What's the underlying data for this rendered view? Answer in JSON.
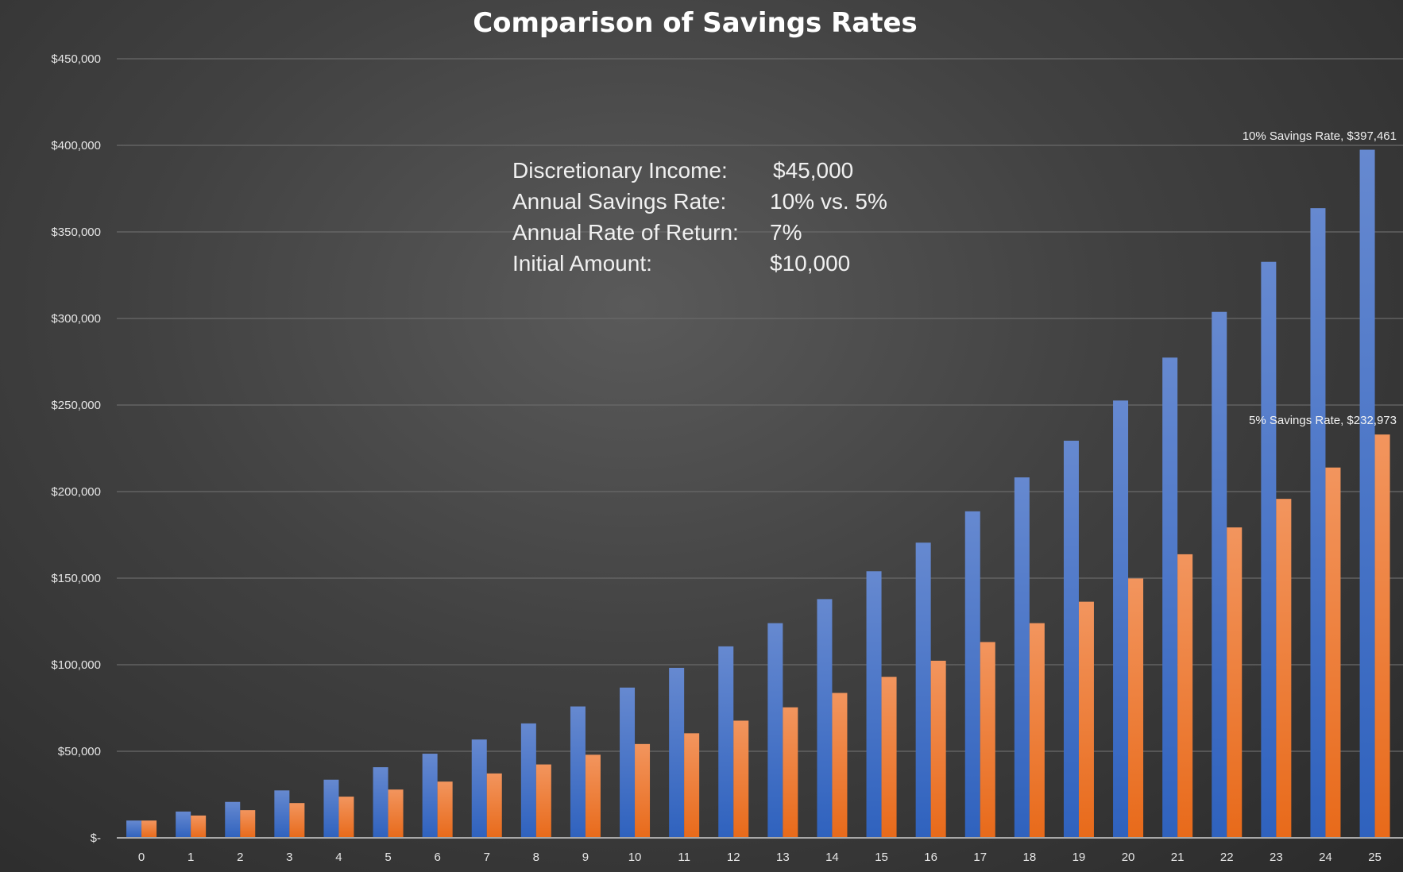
{
  "chart_data": {
    "type": "bar",
    "title": "Comparison of Savings Rates",
    "xlabel": "",
    "ylabel": "",
    "ylim": [
      0,
      450000
    ],
    "grid": true,
    "legend": "none",
    "y_ticks": [
      "$-",
      "$50,000",
      "$100,000",
      "$150,000",
      "$200,000",
      "$250,000",
      "$300,000",
      "$350,000",
      "$400,000",
      "$450,000"
    ],
    "categories": [
      "0",
      "1",
      "2",
      "3",
      "4",
      "5",
      "6",
      "7",
      "8",
      "9",
      "10",
      "11",
      "12",
      "13",
      "14",
      "15",
      "16",
      "17",
      "18",
      "19",
      "20",
      "21",
      "22",
      "23",
      "24",
      "25"
    ],
    "series": [
      {
        "name": "10% Savings Rate",
        "color": "#4472c4",
        "values": [
          10000,
          15200,
          20764,
          27400,
          33600,
          40800,
          48600,
          56800,
          66100,
          75900,
          86800,
          98200,
          110600,
          124000,
          137900,
          154000,
          170500,
          188600,
          208200,
          229400,
          252600,
          277400,
          303800,
          332700,
          363700,
          397461
        ]
      },
      {
        "name": "5% Savings Rate",
        "color": "#ed7d31",
        "values": [
          10000,
          12900,
          16000,
          20100,
          23800,
          27900,
          32500,
          37200,
          42400,
          48000,
          54200,
          60400,
          67700,
          75400,
          83700,
          93000,
          102300,
          113100,
          124000,
          136400,
          149800,
          163800,
          179300,
          195800,
          213900,
          232973
        ]
      }
    ],
    "data_labels": [
      "10% Savings Rate,  $397,461",
      "5% Savings Rate,  $232,973"
    ],
    "annotations": [
      {
        "label": "Discretionary Income:",
        "value": "$45,000"
      },
      {
        "label": "Annual Savings Rate:",
        "value": "10% vs. 5%"
      },
      {
        "label": "Annual Rate of Return:",
        "value": "7%"
      },
      {
        "label": "Initial Amount:",
        "value": "$10,000"
      }
    ]
  }
}
